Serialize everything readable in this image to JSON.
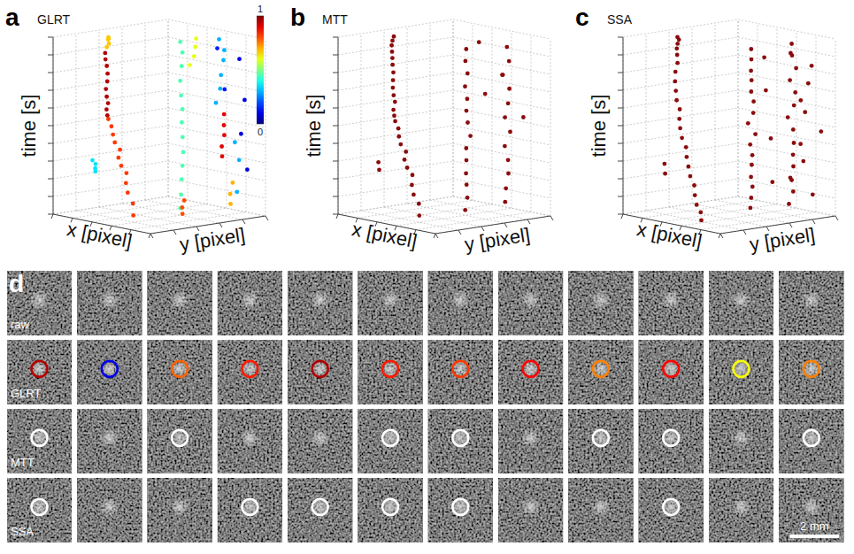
{
  "chart_data": [
    {
      "type": "scatter3d",
      "panel": "a",
      "title": "GLRT",
      "xlabel": "x [pixel]",
      "ylabel": "y [pixel]",
      "zlabel": "time [s]",
      "xlim": [
        0,
        100
      ],
      "ylim": [
        0,
        100
      ],
      "zlim": [
        0,
        10
      ],
      "xticks": [
        0,
        20,
        40,
        60,
        80,
        100
      ],
      "yticks": [
        0,
        20,
        40,
        60,
        80,
        100
      ],
      "zticks": [
        0,
        1,
        2,
        3,
        4,
        5,
        6,
        7,
        8,
        9,
        10
      ],
      "tick_labels": false,
      "grid": true,
      "marker": "circle",
      "colorbar": {
        "range": [
          0,
          1
        ],
        "ticks": [
          0,
          1
        ]
      },
      "series": [
        {
          "score": 0.68,
          "x": [
            22,
            23,
            21,
            24,
            25
          ],
          "y": [
            28,
            29,
            30,
            28,
            27
          ],
          "t": [
            9.4,
            9.6,
            9.8,
            9.9,
            10
          ]
        },
        {
          "score": 0.95,
          "x": [
            18,
            16,
            15,
            17,
            19,
            20,
            22,
            21,
            23,
            25
          ],
          "y": [
            30,
            32,
            34,
            33,
            31,
            29,
            28,
            30,
            27,
            26
          ],
          "t": [
            9.0,
            8.6,
            8.2,
            7.8,
            7.4,
            7.0,
            6.6,
            6.2,
            5.9,
            5.6
          ]
        },
        {
          "score": 0.82,
          "x": [
            26,
            28,
            32,
            35,
            38,
            40,
            44,
            47,
            50,
            53,
            56,
            60
          ],
          "y": [
            26,
            27,
            25,
            24,
            26,
            23,
            22,
            24,
            21,
            20,
            22,
            19
          ],
          "t": [
            5.4,
            5.0,
            4.6,
            4.2,
            3.8,
            3.4,
            3.0,
            2.6,
            2.1,
            1.6,
            1.0,
            0.4
          ]
        },
        {
          "score": 0.35,
          "x": [
            5,
            7,
            9,
            8
          ],
          "y": [
            30,
            31,
            29,
            30
          ],
          "t": [
            2.8,
            2.6,
            2.4,
            2.2
          ]
        },
        {
          "score": 0.45,
          "x": [
            55,
            57,
            54,
            56,
            58,
            55,
            53,
            56,
            57,
            55,
            54,
            56,
            55
          ],
          "y": [
            64,
            63,
            66,
            65,
            64,
            66,
            67,
            65,
            63,
            64,
            66,
            65,
            64
          ],
          "t": [
            0.3,
            1.1,
            1.9,
            2.7,
            3.5,
            4.3,
            5.1,
            5.9,
            6.7,
            7.5,
            8.3,
            9.1,
            9.7
          ]
        },
        {
          "score": 0.6,
          "x": [
            60,
            62,
            61,
            63
          ],
          "y": [
            68,
            70,
            72,
            71
          ],
          "t": [
            8.4,
            8.9,
            9.4,
            9.9
          ]
        },
        {
          "score": 0.3,
          "x": [
            68,
            70,
            72,
            71,
            73,
            70
          ],
          "y": [
            84,
            86,
            85,
            88,
            87,
            85
          ],
          "t": [
            6.2,
            7.0,
            7.8,
            8.6,
            9.2,
            9.8
          ]
        },
        {
          "score": 0.9,
          "x": [
            72,
            74,
            73,
            75,
            74
          ],
          "y": [
            86,
            84,
            87,
            85,
            86
          ],
          "t": [
            3.2,
            3.8,
            4.4,
            5.0,
            5.6
          ]
        },
        {
          "score": 0.7,
          "x": [
            70,
            72,
            71
          ],
          "y": [
            95,
            93,
            96
          ],
          "t": [
            0.4,
            1.0,
            1.6
          ]
        },
        {
          "score": 0.1,
          "x": [
            85,
            88,
            82,
            86
          ],
          "y": [
            90,
            92,
            94,
            96
          ],
          "t": [
            8.8,
            6.5,
            4.5,
            2.5
          ]
        },
        {
          "score": 0.15,
          "x": [
            80,
            84
          ],
          "y": [
            75,
            78
          ],
          "t": [
            9.5,
            7.2
          ]
        },
        {
          "score": 0.3,
          "x": [
            78,
            80,
            79
          ],
          "y": [
            92,
            94,
            93
          ],
          "t": [
            4.0,
            3.0,
            1.2
          ]
        },
        {
          "score": 0.8,
          "x": [
            62,
            64,
            65
          ],
          "y": [
            60,
            58,
            59
          ],
          "t": [
            0.1,
            0.5,
            0.9
          ]
        }
      ]
    },
    {
      "type": "scatter3d",
      "panel": "b",
      "title": "MTT",
      "xlabel": "x [pixel]",
      "ylabel": "y [pixel]",
      "zlabel": "time [s]",
      "xlim": [
        0,
        100
      ],
      "ylim": [
        0,
        100
      ],
      "zlim": [
        0,
        10
      ],
      "xticks": [
        0,
        20,
        40,
        60,
        80,
        100
      ],
      "yticks": [
        0,
        20,
        40,
        60,
        80,
        100
      ],
      "zticks": [
        0,
        1,
        2,
        3,
        4,
        5,
        6,
        7,
        8,
        9,
        10
      ],
      "tick_labels": false,
      "grid": true,
      "marker": "circle",
      "color": "#8b0c0c",
      "series": [
        {
          "x": [
            20,
            18,
            17,
            19,
            21,
            22,
            24,
            23,
            25,
            27,
            28,
            30,
            33,
            36,
            39,
            41,
            45,
            48,
            51,
            54,
            57,
            61
          ],
          "y": [
            30,
            32,
            33,
            32,
            30,
            29,
            28,
            30,
            27,
            26,
            26,
            27,
            25,
            24,
            26,
            23,
            22,
            24,
            21,
            20,
            22,
            19
          ],
          "t": [
            9.1,
            8.7,
            8.3,
            7.9,
            7.5,
            7.1,
            6.7,
            6.3,
            5.9,
            5.6,
            5.3,
            4.9,
            4.5,
            4.1,
            3.7,
            3.3,
            2.9,
            2.5,
            2.0,
            1.5,
            1.0,
            0.4
          ]
        },
        {
          "x": [
            22,
            24,
            23
          ],
          "y": [
            28,
            27,
            29
          ],
          "t": [
            9.5,
            9.8,
            10.0
          ]
        },
        {
          "x": [
            6,
            8
          ],
          "y": [
            30,
            29
          ],
          "t": [
            2.7,
            2.3
          ]
        },
        {
          "x": [
            55,
            56,
            54,
            57,
            55,
            56,
            58,
            54,
            55,
            57,
            56,
            55,
            54,
            56
          ],
          "y": [
            64,
            65,
            66,
            63,
            65,
            64,
            66,
            67,
            65,
            64,
            63,
            66,
            65,
            64
          ],
          "t": [
            0.2,
            0.9,
            1.6,
            2.3,
            3.0,
            3.7,
            4.4,
            5.1,
            5.8,
            6.5,
            7.2,
            7.9,
            8.6,
            9.3
          ]
        },
        {
          "x": [
            70,
            72,
            71,
            73,
            72,
            74,
            71,
            73,
            72,
            70,
            74,
            73
          ],
          "y": [
            86,
            85,
            88,
            86,
            84,
            87,
            85,
            86,
            88,
            84,
            86,
            85
          ],
          "t": [
            0.6,
            1.4,
            2.2,
            3.0,
            3.8,
            4.6,
            5.4,
            6.2,
            7.0,
            7.8,
            8.6,
            9.4
          ]
        },
        {
          "x": [
            62,
            80,
            84,
            66
          ],
          "y": [
            70,
            75,
            90,
            72
          ],
          "t": [
            9.7,
            8.0,
            5.5,
            6.8
          ]
        }
      ]
    },
    {
      "type": "scatter3d",
      "panel": "c",
      "title": "SSA",
      "xlabel": "x [pixel]",
      "ylabel": "y [pixel]",
      "zlabel": "time [s]",
      "xlim": [
        0,
        100
      ],
      "ylim": [
        0,
        100
      ],
      "zlim": [
        0,
        10
      ],
      "xticks": [
        0,
        20,
        40,
        60,
        80,
        100
      ],
      "yticks": [
        0,
        20,
        40,
        60,
        80,
        100
      ],
      "zticks": [
        0,
        1,
        2,
        3,
        4,
        5,
        6,
        7,
        8,
        9,
        10
      ],
      "tick_labels": false,
      "grid": true,
      "marker": "circle",
      "color": "#8b0c0c",
      "series": [
        {
          "x": [
            19,
            17,
            16,
            18,
            20,
            22,
            24,
            26,
            28,
            31,
            34,
            37,
            40,
            43,
            46,
            49,
            52,
            55,
            58
          ],
          "y": [
            31,
            33,
            32,
            30,
            29,
            28,
            29,
            27,
            26,
            25,
            26,
            24,
            23,
            22,
            23,
            21,
            20,
            21,
            19
          ],
          "t": [
            8.9,
            8.4,
            7.9,
            7.4,
            6.9,
            6.4,
            5.9,
            5.4,
            4.9,
            4.4,
            3.9,
            3.4,
            2.9,
            2.4,
            1.9,
            1.4,
            0.9,
            0.5,
            0.1
          ]
        },
        {
          "x": [
            21,
            23,
            22,
            24
          ],
          "y": [
            29,
            28,
            30,
            27
          ],
          "t": [
            9.3,
            9.6,
            9.8,
            10.0
          ]
        },
        {
          "x": [
            6,
            9
          ],
          "y": [
            31,
            29
          ],
          "t": [
            2.6,
            2.1
          ]
        },
        {
          "x": [
            54,
            56,
            55,
            57,
            53,
            56,
            55,
            58,
            54,
            57,
            55,
            56,
            54,
            57,
            55,
            56
          ],
          "y": [
            65,
            64,
            66,
            63,
            67,
            65,
            64,
            66,
            63,
            65,
            67,
            64,
            66,
            63,
            65,
            64
          ],
          "t": [
            0.3,
            0.9,
            1.5,
            2.1,
            2.7,
            3.3,
            3.9,
            4.5,
            5.1,
            5.7,
            6.3,
            6.9,
            7.5,
            8.1,
            8.7,
            9.3
          ]
        },
        {
          "x": [
            70,
            72,
            74,
            71,
            73,
            75,
            72,
            70,
            74,
            73,
            71,
            75,
            72,
            74
          ],
          "y": [
            85,
            87,
            84,
            88,
            86,
            85,
            87,
            84,
            86,
            88,
            85,
            87,
            86,
            84
          ],
          "t": [
            0.5,
            1.2,
            1.9,
            2.6,
            3.3,
            4.0,
            4.7,
            5.4,
            6.1,
            6.8,
            7.5,
            8.2,
            8.9,
            9.6
          ]
        },
        {
          "x": [
            80,
            85,
            78,
            88,
            83,
            90,
            76,
            86,
            82,
            79
          ],
          "y": [
            78,
            92,
            95,
            80,
            88,
            96,
            90,
            84,
            76,
            98
          ],
          "t": [
            9.2,
            8.4,
            7.3,
            6.6,
            5.8,
            4.7,
            3.9,
            3.1,
            2.2,
            1.0
          ]
        },
        {
          "x": [
            60,
            64,
            62,
            66
          ],
          "y": [
            72,
            70,
            76,
            74
          ],
          "t": [
            8.8,
            7.0,
            4.2,
            1.8
          ]
        }
      ]
    },
    {
      "type": "image_grid",
      "panel": "d",
      "scale_bar": "2 mm",
      "rows": [
        {
          "label": "raw"
        },
        {
          "label": "GLRT",
          "scores": [
            0.95,
            0.1,
            0.78,
            0.85,
            0.95,
            0.85,
            0.82,
            0.87,
            0.75,
            0.87,
            0.62,
            0.75
          ]
        },
        {
          "label": "MTT",
          "detected": [
            true,
            false,
            true,
            false,
            false,
            true,
            true,
            false,
            true,
            true,
            false,
            true
          ]
        },
        {
          "label": "SSA",
          "detected": [
            true,
            false,
            false,
            true,
            true,
            true,
            true,
            false,
            false,
            true,
            false,
            false
          ]
        }
      ]
    }
  ]
}
